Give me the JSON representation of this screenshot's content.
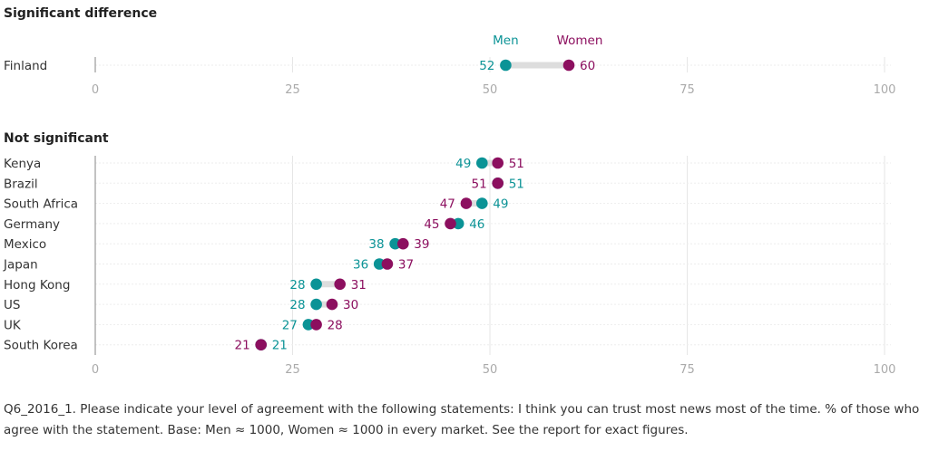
{
  "chart_data": {
    "type": "dot",
    "xlim": [
      0,
      100
    ],
    "xticks": [
      0,
      25,
      50,
      75,
      100
    ],
    "series": [
      {
        "name": "Men",
        "color": "#0b9396"
      },
      {
        "name": "Women",
        "color": "#8c0f5f"
      }
    ],
    "groups": [
      {
        "title": "Significant difference",
        "rows": [
          {
            "country": "Finland",
            "men": 52,
            "women": 60
          }
        ]
      },
      {
        "title": "Not significant",
        "rows": [
          {
            "country": "Kenya",
            "men": 49,
            "women": 51
          },
          {
            "country": "Brazil",
            "men": 51,
            "women": 51
          },
          {
            "country": "South Africa",
            "men": 49,
            "women": 47
          },
          {
            "country": "Germany",
            "men": 46,
            "women": 45
          },
          {
            "country": "Mexico",
            "men": 38,
            "women": 39
          },
          {
            "country": "Japan",
            "men": 36,
            "women": 37
          },
          {
            "country": "Hong Kong",
            "men": 28,
            "women": 31
          },
          {
            "country": "US",
            "men": 28,
            "women": 30
          },
          {
            "country": "UK",
            "men": 27,
            "women": 28
          },
          {
            "country": "South Korea",
            "men": 21,
            "women": 21
          }
        ]
      }
    ]
  },
  "footnote": "Q6_2016_1. Please indicate your level of agreement with the following statements: I think you can trust most news most of the time. % of those who agree with the statement. Base: Men ≈ 1000, Women ≈ 1000 in every market. See the report for exact figures."
}
